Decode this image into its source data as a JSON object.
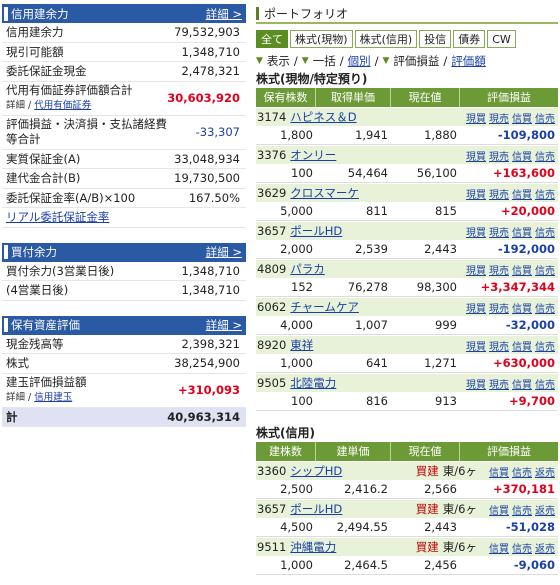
{
  "left": {
    "credit": {
      "title": "信用建余力",
      "detail": "詳細",
      "rows": [
        {
          "label": "信用建余力",
          "value": "79,532,903"
        },
        {
          "label": "現引可能額",
          "value": "1,348,710"
        },
        {
          "label": "委託保証金現金",
          "value": "2,478,321"
        }
      ],
      "substitute": {
        "label": "代用有価証券評価額合計",
        "value": "30,603,920",
        "sub_prefix": "詳細 / ",
        "sub_link": "代用有価証券"
      },
      "fees": {
        "label": "評価損益・決済損・支払諸経費等合計",
        "value": "-33,307"
      },
      "rows2": [
        {
          "label": "実質保証金(A)",
          "value": "33,048,934"
        },
        {
          "label": "建代金合計(B)",
          "value": "19,730,500"
        },
        {
          "label": "委託保証金率(A/B)×100",
          "value": "167.50%"
        }
      ],
      "real_link": "リアル委託保証金率"
    },
    "buying": {
      "title": "買付余力",
      "detail": "詳細",
      "rows": [
        {
          "label": "買付余力(3営業日後)",
          "value": "1,348,710"
        },
        {
          "label": "(4営業日後)",
          "value": "1,348,710"
        }
      ]
    },
    "assets": {
      "title": "保有資産評価",
      "detail": "詳細",
      "rows": [
        {
          "label": "現金残高等",
          "value": "2,398,321"
        },
        {
          "label": "株式",
          "value": "38,254,900"
        }
      ],
      "unrealized": {
        "label": "建玉評価損益額",
        "value": "+310,093",
        "sub_prefix": "詳細 / ",
        "sub_link": "信用建玉"
      },
      "total": {
        "label": "計",
        "value": "40,963,314"
      }
    }
  },
  "right": {
    "title": "ポートフォリオ",
    "tabs": [
      "全て",
      "株式(現物)",
      "株式(信用)",
      "投信",
      "債券",
      "CW"
    ],
    "view": {
      "prefix": "表示",
      "sep1": "/",
      "bulk": "一括",
      "sep2": "/",
      "individual": "個別",
      "sep3": "/",
      "pl": "評価損益",
      "sep4": "/",
      "amount": "評価額"
    },
    "cash_section": {
      "title": "株式(現物/特定預り)",
      "headers": [
        "保有株数",
        "取得単価",
        "現在値",
        "評価損益"
      ],
      "actions": [
        "現買",
        "現売",
        "信買",
        "信売"
      ],
      "items": [
        {
          "code": "3174",
          "name": "ハピネス＆D",
          "qty": "1,800",
          "cost": "1,941",
          "price": "1,880",
          "pl": "-109,800",
          "sign": "neg"
        },
        {
          "code": "3376",
          "name": "オンリー",
          "qty": "100",
          "cost": "54,464",
          "price": "56,100",
          "pl": "+163,600",
          "sign": "pos"
        },
        {
          "code": "3629",
          "name": "クロスマーケ",
          "qty": "5,000",
          "cost": "811",
          "price": "815",
          "pl": "+20,000",
          "sign": "pos"
        },
        {
          "code": "3657",
          "name": "ポールHD",
          "qty": "2,000",
          "cost": "2,539",
          "price": "2,443",
          "pl": "-192,000",
          "sign": "neg"
        },
        {
          "code": "4809",
          "name": "パラカ",
          "qty": "152",
          "cost": "76,278",
          "price": "98,300",
          "pl": "+3,347,344",
          "sign": "pos"
        },
        {
          "code": "6062",
          "name": "チャームケア",
          "qty": "4,000",
          "cost": "1,007",
          "price": "999",
          "pl": "-32,000",
          "sign": "neg"
        },
        {
          "code": "8920",
          "name": "東祥",
          "qty": "1,000",
          "cost": "641",
          "price": "1,271",
          "pl": "+630,000",
          "sign": "pos"
        },
        {
          "code": "9505",
          "name": "北陸電力",
          "qty": "100",
          "cost": "816",
          "price": "913",
          "pl": "+9,700",
          "sign": "pos"
        }
      ]
    },
    "margin_section": {
      "title": "株式(信用)",
      "headers": [
        "建株数",
        "建単価",
        "現在値",
        "評価損益"
      ],
      "actions": [
        "信買",
        "信売",
        "返売"
      ],
      "items": [
        {
          "code": "3360",
          "name": "シップHD",
          "type": "買建",
          "market": "東/6ヶ",
          "qty": "2,500",
          "cost": "2,416.2",
          "price": "2,566",
          "pl": "+370,181",
          "sign": "pos"
        },
        {
          "code": "3657",
          "name": "ポールHD",
          "type": "買建",
          "market": "東/6ヶ",
          "qty": "4,500",
          "cost": "2,494.55",
          "price": "2,443",
          "pl": "-51,028",
          "sign": "neg"
        },
        {
          "code": "9511",
          "name": "沖縄電力",
          "type": "買建",
          "market": "東/6ヶ",
          "qty": "1,000",
          "cost": "2,464.5",
          "price": "2,456",
          "pl": "-9,060",
          "sign": "neg"
        }
      ]
    }
  }
}
